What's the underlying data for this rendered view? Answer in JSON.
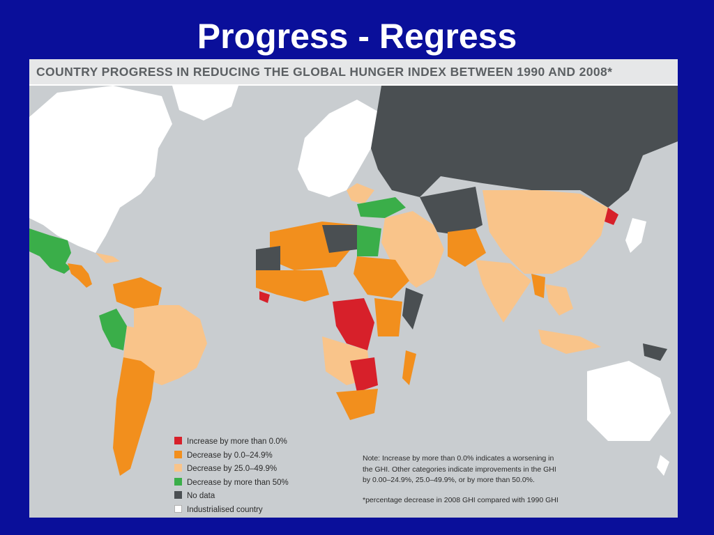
{
  "slide": {
    "title": "Progress - Regress"
  },
  "map": {
    "header": "COUNTRY PROGRESS IN REDUCING THE GLOBAL HUNGER INDEX BETWEEN 1990 AND 2008*",
    "colors": {
      "ocean": "#c9cdd0",
      "increase": "#d7202a",
      "decrease_0_24": "#f28f1d",
      "decrease_25_49": "#f9c48a",
      "decrease_50": "#3aae49",
      "no_data": "#4a4f52",
      "industrialised": "#ffffff"
    },
    "legend": [
      {
        "label": "Increase by more than 0.0%",
        "color": "#d7202a"
      },
      {
        "label": "Decrease by 0.0–24.9%",
        "color": "#f28f1d"
      },
      {
        "label": "Decrease by 25.0–49.9%",
        "color": "#f9c48a"
      },
      {
        "label": "Decrease by more than 50%",
        "color": "#3aae49"
      },
      {
        "label": "No data",
        "color": "#4a4f52"
      },
      {
        "label": "Industrialised country",
        "color": "#ffffff"
      }
    ],
    "note_lines": [
      "Note: Increase by more than 0.0% indicates a worsening in",
      "the GHI. Other categories indicate improvements in the GHI",
      "by 0.00–24.9%, 25.0–49.9%, or by more than 50.0%."
    ],
    "footnote": "*percentage decrease in 2008 GHI compared with 1990 GHI"
  }
}
